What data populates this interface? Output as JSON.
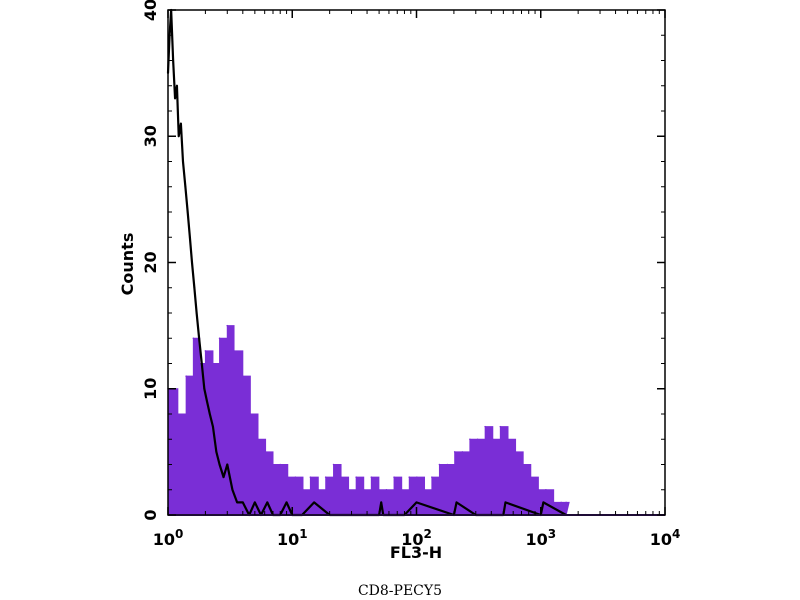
{
  "caption": "CD8-PECY5",
  "chart_data": {
    "type": "histogram",
    "xlabel": "FL3-H",
    "ylabel": "Counts",
    "x_scale": "log",
    "xlim": [
      1,
      10000
    ],
    "ylim": [
      0,
      40
    ],
    "x_ticks": [
      {
        "value": 1,
        "base": "10",
        "exp": "0"
      },
      {
        "value": 10,
        "base": "10",
        "exp": "1"
      },
      {
        "value": 100,
        "base": "10",
        "exp": "2"
      },
      {
        "value": 1000,
        "base": "10",
        "exp": "3"
      },
      {
        "value": 10000,
        "base": "10",
        "exp": "4"
      }
    ],
    "y_ticks": [
      0,
      10,
      20,
      30,
      40
    ],
    "series": [
      {
        "style": "filled",
        "color": "#7a2ed6",
        "x": [
          1.0,
          1.2,
          1.4,
          1.6,
          1.8,
          2.0,
          2.3,
          2.6,
          3.0,
          3.4,
          4.0,
          4.6,
          5.3,
          6.1,
          7.0,
          8.0,
          9.2,
          10.6,
          12.2,
          14.0,
          16.2,
          18.6,
          21.5,
          24.7,
          28.4,
          32.7,
          37.6,
          43.3,
          49.8,
          57.3,
          66.0,
          76.0,
          87.5,
          100.7,
          116,
          133,
          153,
          177,
          203,
          234,
          269,
          310,
          357,
          411,
          473,
          545,
          627,
          722,
          831,
          957,
          1100,
          1270,
          1460,
          1600
        ],
        "y": [
          10,
          8,
          11,
          14,
          12,
          13,
          12,
          14,
          15,
          13,
          11,
          8,
          6,
          5,
          4,
          4,
          3,
          3,
          2,
          3,
          2,
          3,
          4,
          3,
          2,
          3,
          2,
          3,
          2,
          2,
          3,
          2,
          3,
          3,
          2,
          3,
          4,
          4,
          5,
          5,
          6,
          6,
          7,
          6,
          7,
          6,
          5,
          4,
          3,
          2,
          2,
          1,
          1,
          1
        ]
      },
      {
        "style": "line",
        "color": "#000000",
        "x": [
          1.0,
          1.03,
          1.06,
          1.1,
          1.14,
          1.18,
          1.22,
          1.27,
          1.32,
          1.38,
          1.44,
          1.5,
          1.56,
          1.63,
          1.7,
          1.78,
          1.87,
          1.96,
          2.06,
          2.17,
          2.3,
          2.45,
          2.6,
          2.8,
          3.0,
          3.3,
          3.6,
          4.0,
          4.5,
          5.0,
          5.6,
          6.3,
          7.0,
          8.0,
          9.0,
          10,
          12,
          15,
          20,
          30,
          50,
          52,
          54,
          80,
          100,
          200,
          210,
          300,
          500,
          520,
          1000,
          1050,
          1600
        ],
        "y": [
          35,
          38,
          40,
          36,
          33,
          34,
          30,
          31,
          28,
          26,
          24,
          22,
          20,
          18,
          16,
          14,
          12,
          10,
          9,
          8,
          7,
          5,
          4,
          3,
          4,
          2,
          1,
          1,
          0,
          1,
          0,
          1,
          0,
          0,
          1,
          0,
          0,
          1,
          0,
          0,
          0,
          1,
          0,
          0,
          1,
          0,
          1,
          0,
          0,
          1,
          0,
          1,
          0
        ]
      }
    ]
  }
}
